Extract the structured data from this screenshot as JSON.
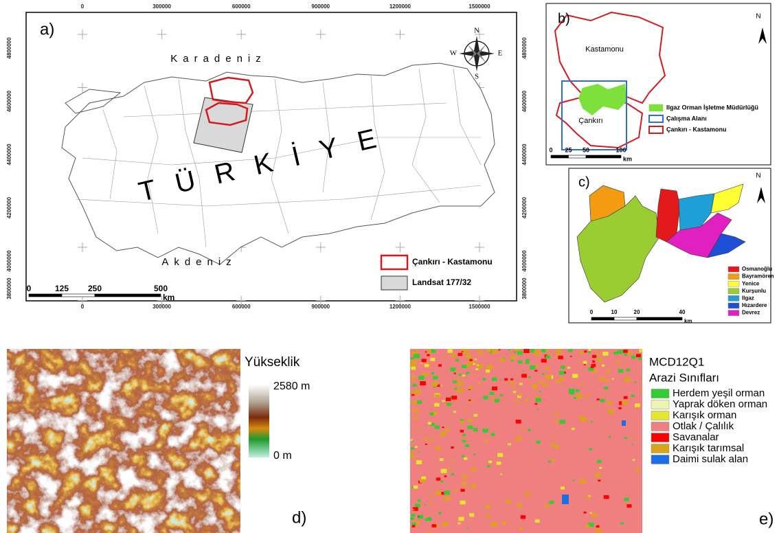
{
  "panel_a": {
    "label": "a)",
    "x_ticks": [
      "0",
      "300000",
      "600000",
      "900000",
      "1200000",
      "1500000"
    ],
    "y_ticks": [
      "4800000",
      "4600000",
      "4400000",
      "4200000",
      "4000000",
      "3800000"
    ],
    "sea_north": "Karadeniz",
    "sea_south": "Akdeniz",
    "country": "TÜRKİYE",
    "compass": {
      "north": "N",
      "east": "E",
      "south": "S",
      "west": "W"
    },
    "legend": [
      {
        "name": "Çankırı - Kastamonu",
        "color": "#d7191c"
      },
      {
        "name": "Landsat 177/32",
        "color": "#d9d9d9"
      }
    ],
    "scale": [
      "0",
      "125",
      "250",
      "500"
    ],
    "scale_unit": "km"
  },
  "panel_b": {
    "label": "b)",
    "north": "N",
    "region_north": "Kastamonu",
    "region_south": "Çankırı",
    "legend": [
      {
        "name": "Ilgaz Orman İşletme Müdürlüğü",
        "color": "#7ee03a"
      },
      {
        "name": "Çalışma Alanı",
        "color": "#2a6fd6"
      },
      {
        "name": "Çankırı - Kastamonu",
        "color": "#d7191c"
      }
    ],
    "scale": [
      "0",
      "25",
      "50",
      "100"
    ],
    "scale_unit": "km"
  },
  "panel_c": {
    "label": "c)",
    "north": "N",
    "legend": [
      {
        "name": "Osmanoğlu",
        "color": "#e31a1c"
      },
      {
        "name": "Bayramören",
        "color": "#f39c12"
      },
      {
        "name": "Yenice",
        "color": "#ffff33"
      },
      {
        "name": "Kurşunlu",
        "color": "#9acd32"
      },
      {
        "name": "Ilgaz",
        "color": "#1e9fd6"
      },
      {
        "name": "Hızardere",
        "color": "#1f4fd6"
      },
      {
        "name": "Devrez",
        "color": "#e020c0"
      }
    ],
    "scale": [
      "0",
      "10",
      "20",
      "40"
    ],
    "scale_unit": "km"
  },
  "panel_d": {
    "label": "d)",
    "title": "Yükseklik",
    "max_label": "2580 m",
    "min_label": "0 m"
  },
  "panel_e": {
    "label": "e)",
    "title": "MCD12Q1",
    "subtitle": "Arazi Sınıfları",
    "legend": [
      {
        "name": "Herdem yeşil orman",
        "color": "#33cc33"
      },
      {
        "name": "Yaprak döken orman",
        "color": "#eef5b0"
      },
      {
        "name": "Karışık orman",
        "color": "#e6e62e"
      },
      {
        "name": "Otlak / Çalılık",
        "color": "#f08080"
      },
      {
        "name": "Savanalar",
        "color": "#ff0000"
      },
      {
        "name": "Karışık tarımsal",
        "color": "#d9a31a"
      },
      {
        "name": "Daimi sulak alan",
        "color": "#1a6ee6"
      }
    ]
  }
}
